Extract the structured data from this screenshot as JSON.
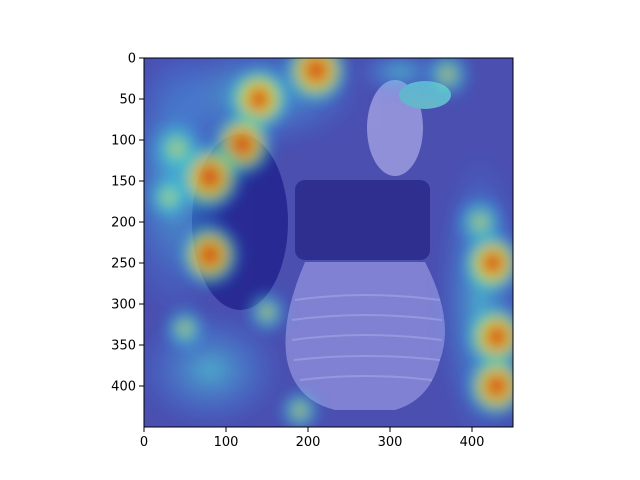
{
  "chart_data": {
    "type": "heatmap",
    "title": "",
    "xlabel": "",
    "ylabel": "",
    "xlim": [
      0,
      450
    ],
    "ylim": [
      450,
      0
    ],
    "x_ticks": [
      0,
      100,
      200,
      300,
      400
    ],
    "y_ticks": [
      0,
      50,
      100,
      150,
      200,
      250,
      300,
      350,
      400
    ],
    "colormap": "jet",
    "overlay": "attention heatmap over photo of bird perched on a wall-mounted glass lamp",
    "grid": false,
    "legend": "none",
    "hotspots": [
      {
        "x": 210,
        "y": 15,
        "level": 1.0
      },
      {
        "x": 140,
        "y": 50,
        "level": 0.9
      },
      {
        "x": 120,
        "y": 105,
        "level": 0.9
      },
      {
        "x": 80,
        "y": 145,
        "level": 1.0
      },
      {
        "x": 80,
        "y": 240,
        "level": 0.9
      },
      {
        "x": 425,
        "y": 250,
        "level": 0.85
      },
      {
        "x": 430,
        "y": 340,
        "level": 0.9
      },
      {
        "x": 430,
        "y": 400,
        "level": 0.9
      },
      {
        "x": 40,
        "y": 110,
        "level": 0.7
      },
      {
        "x": 370,
        "y": 20,
        "level": 0.55
      },
      {
        "x": 410,
        "y": 200,
        "level": 0.6
      },
      {
        "x": 30,
        "y": 170,
        "level": 0.45
      },
      {
        "x": 190,
        "y": 430,
        "level": 0.4
      },
      {
        "x": 50,
        "y": 330,
        "level": 0.45
      },
      {
        "x": 150,
        "y": 310,
        "level": 0.4
      }
    ]
  }
}
